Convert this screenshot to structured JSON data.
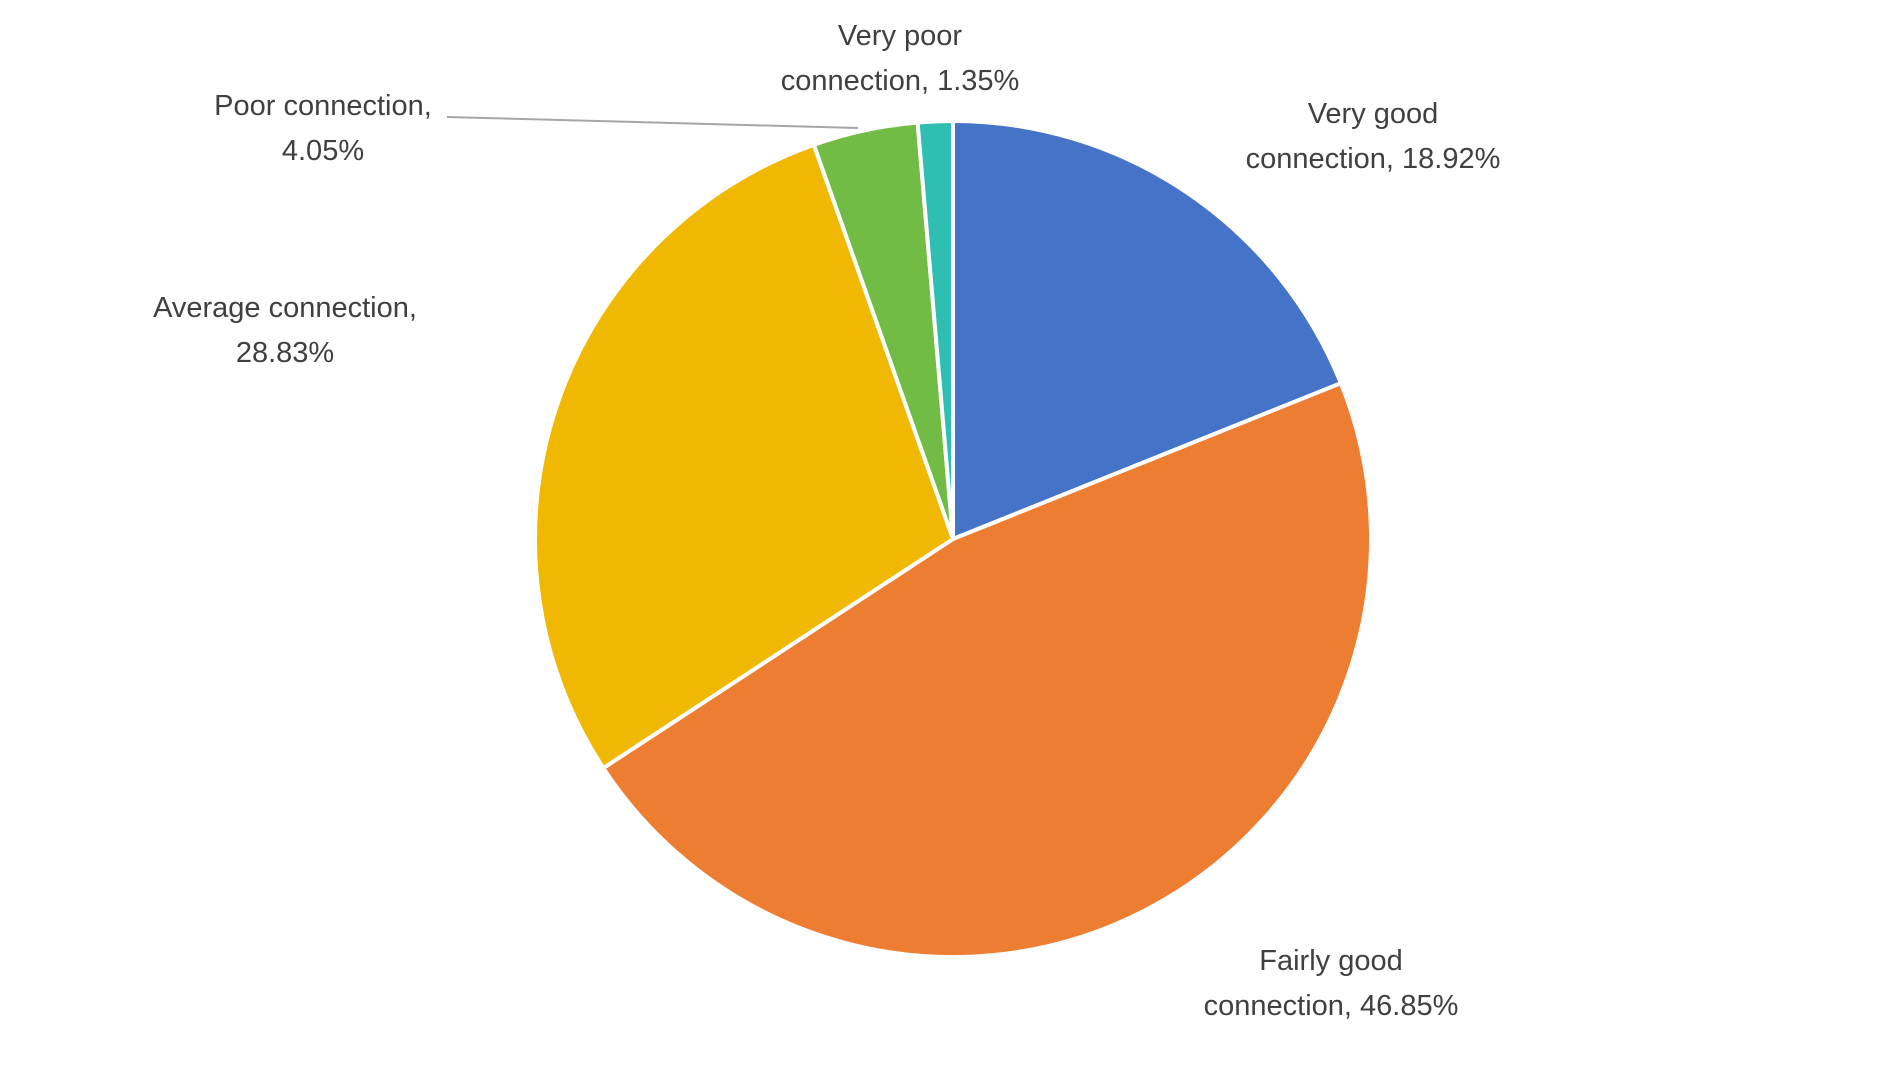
{
  "chart_data": {
    "type": "pie",
    "title": "",
    "start_angle_deg": 0,
    "direction": "clockwise",
    "legend": "none",
    "data_label_format": "category name, percentage (outside end)",
    "slices": [
      {
        "label": "Very good connection",
        "value": 18.92,
        "color": "#4573C8"
      },
      {
        "label": "Fairly good connection",
        "value": 46.85,
        "color": "#ED7D31"
      },
      {
        "label": "Average connection",
        "value": 28.83,
        "color": "#F0B800"
      },
      {
        "label": "Poor connection",
        "value": 4.05,
        "color": "#70BC44"
      },
      {
        "label": "Very poor connection",
        "value": 1.35,
        "color": "#2FBFB2"
      }
    ]
  },
  "labels": {
    "very_good": {
      "line1": "Very good",
      "line2": "connection, 18.92%"
    },
    "fairly_good": {
      "line1": "Fairly good",
      "line2": "connection, 46.85%"
    },
    "average": {
      "line1": "Average connection,",
      "line2": "28.83%"
    },
    "poor": {
      "line1": "Poor connection,",
      "line2": "4.05%"
    },
    "very_poor": {
      "line1": "Very poor",
      "line2": "connection, 1.35%"
    }
  },
  "style": {
    "background": "#FFFFFF",
    "label_text_color": "#404040",
    "slice_border_color": "#FFFFFF",
    "leader_line_color": "#A6A6A6"
  }
}
